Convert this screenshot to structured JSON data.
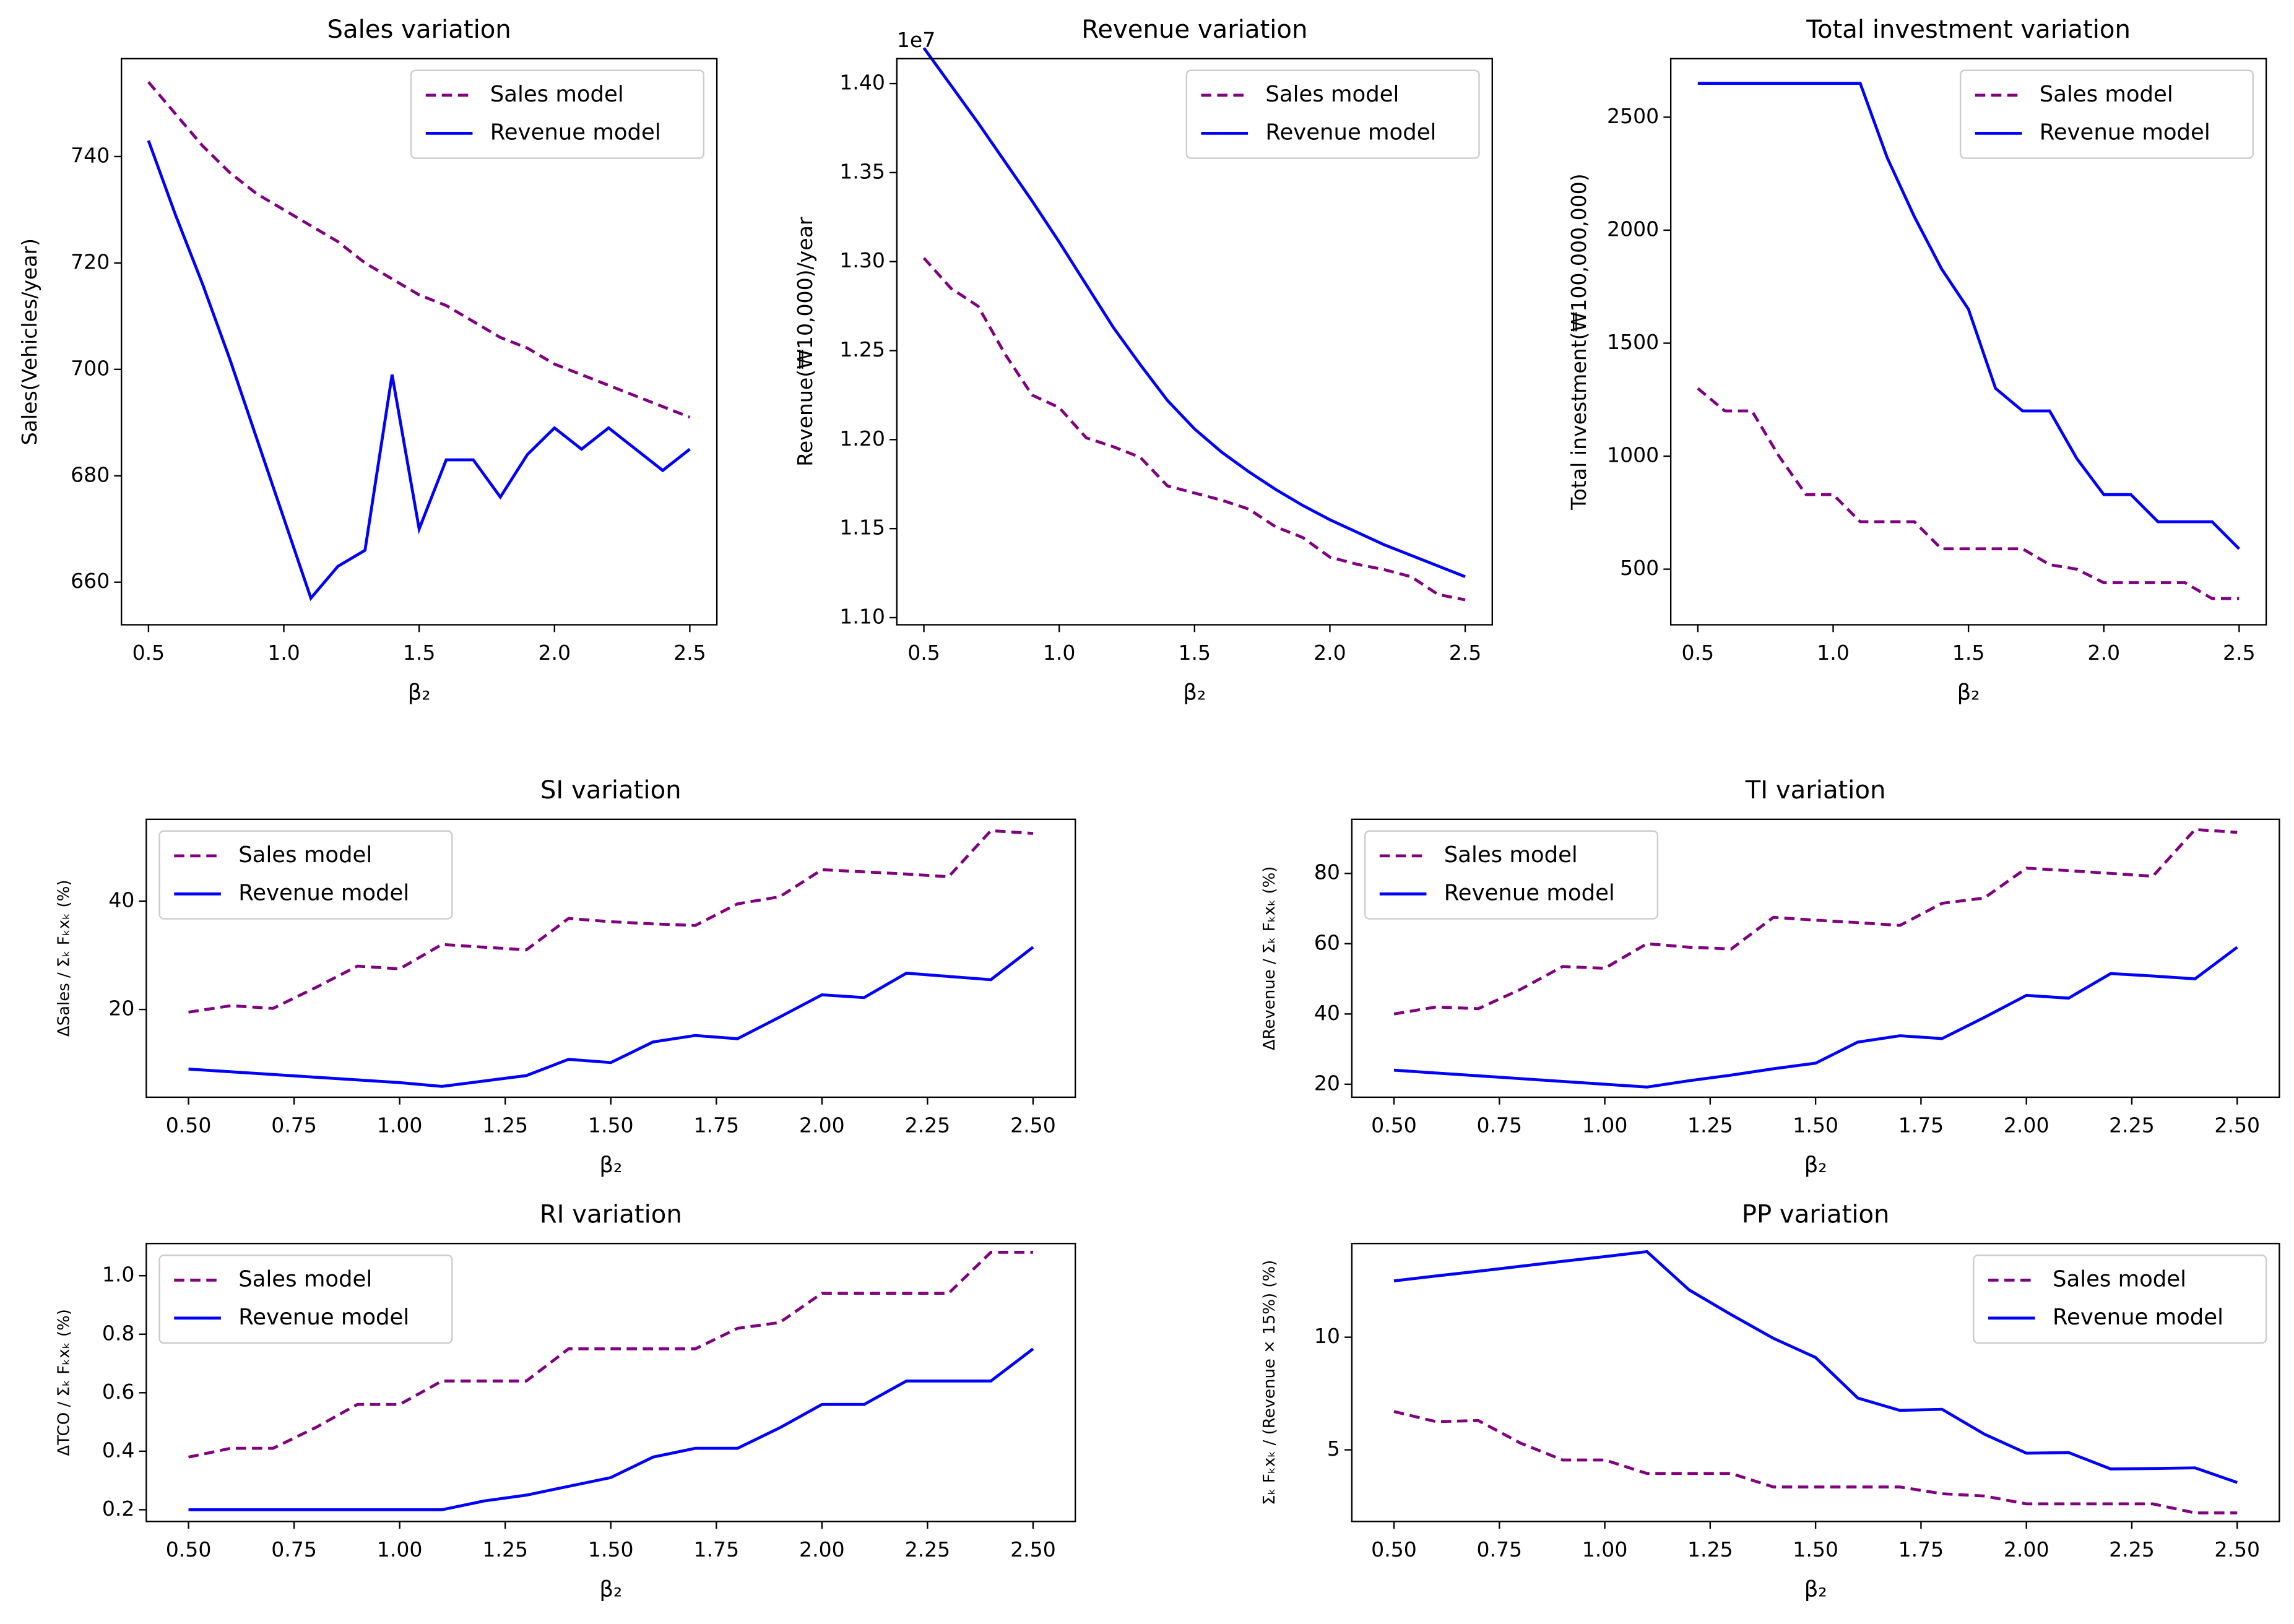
{
  "chart_data": [
    {
      "type": "line",
      "title": "Sales variation",
      "xlabel": "β₂",
      "ylabel": "Sales(Vehicles/year)",
      "x": [
        0.5,
        0.6,
        0.7,
        0.8,
        0.9,
        1.0,
        1.1,
        1.2,
        1.3,
        1.4,
        1.5,
        1.6,
        1.7,
        1.8,
        1.9,
        2.0,
        2.1,
        2.2,
        2.3,
        2.4,
        2.5
      ],
      "series": [
        {
          "name": "Sales model",
          "color": "#800080",
          "dash": true,
          "values": [
            754,
            748,
            742,
            737,
            733,
            730,
            727,
            724,
            720,
            717,
            714,
            712,
            709,
            706,
            704,
            701,
            699,
            697,
            695,
            693,
            691
          ]
        },
        {
          "name": "Revenue model",
          "color": "#0000ff",
          "dash": false,
          "values": [
            743,
            729,
            716,
            702,
            687,
            672,
            657,
            663,
            666,
            699,
            670,
            683,
            683,
            676,
            684,
            689,
            685,
            689,
            685,
            681,
            685
          ]
        }
      ],
      "xlim": [
        0.4,
        2.6
      ],
      "xticks": [
        0.5,
        {
          "value": 1.0,
          "label": "1.0"
        },
        1.5,
        {
          "value": 2.0,
          "label": "2.0"
        },
        2.5
      ],
      "ylim": [
        652,
        758.4
      ],
      "yticks": [
        660,
        680,
        700,
        720,
        740
      ],
      "legend": "upper right"
    },
    {
      "type": "line",
      "title": "Revenue variation",
      "xlabel": "β₂",
      "ylabel": "Revenue(₩10,000)/year",
      "offset_label": "1e7",
      "x": [
        0.5,
        0.6,
        0.7,
        0.8,
        0.9,
        1.0,
        1.1,
        1.2,
        1.3,
        1.4,
        1.5,
        1.6,
        1.7,
        1.8,
        1.9,
        2.0,
        2.1,
        2.2,
        2.3,
        2.4,
        2.5
      ],
      "series": [
        {
          "name": "Sales model",
          "color": "#800080",
          "dash": true,
          "values": [
            1.302,
            1.285,
            1.275,
            1.248,
            1.225,
            1.218,
            1.201,
            1.196,
            1.19,
            1.174,
            1.17,
            1.166,
            1.161,
            1.151,
            1.145,
            1.134,
            1.13,
            1.127,
            1.123,
            1.113,
            1.11
          ]
        },
        {
          "name": "Revenue model",
          "color": "#0000ff",
          "dash": false,
          "values": [
            1.42,
            1.399,
            1.378,
            1.356,
            1.334,
            1.311,
            1.287,
            1.263,
            1.242,
            1.222,
            1.206,
            1.193,
            1.182,
            1.172,
            1.163,
            1.155,
            1.148,
            1.141,
            1.135,
            1.129,
            1.123
          ]
        }
      ],
      "xlim": [
        0.4,
        2.6
      ],
      "xticks": [
        0.5,
        {
          "value": 1.0,
          "label": "1.0"
        },
        1.5,
        {
          "value": 2.0,
          "label": "2.0"
        },
        2.5
      ],
      "ylim": [
        1.096,
        1.414
      ],
      "yticks": [
        {
          "value": 1.1,
          "label": "1.10"
        },
        1.15,
        {
          "value": 1.2,
          "label": "1.20"
        },
        1.25,
        {
          "value": 1.3,
          "label": "1.30"
        },
        1.35,
        {
          "value": 1.4,
          "label": "1.40"
        }
      ],
      "legend": "upper right"
    },
    {
      "type": "line",
      "title": "Total investment variation",
      "xlabel": "β₂",
      "ylabel": "Total investment(₩100,000,000)",
      "x": [
        0.5,
        0.6,
        0.7,
        0.8,
        0.9,
        1.0,
        1.1,
        1.2,
        1.3,
        1.4,
        1.5,
        1.6,
        1.7,
        1.8,
        1.9,
        2.0,
        2.1,
        2.2,
        2.3,
        2.4,
        2.5
      ],
      "series": [
        {
          "name": "Sales model",
          "color": "#800080",
          "dash": true,
          "values": [
            1300,
            1200,
            1200,
            1000,
            830,
            830,
            710,
            710,
            710,
            590,
            590,
            590,
            590,
            520,
            500,
            440,
            440,
            440,
            440,
            370,
            370
          ]
        },
        {
          "name": "Revenue model",
          "color": "#0000ff",
          "dash": false,
          "values": [
            2650,
            2650,
            2650,
            2650,
            2650,
            2650,
            2650,
            2320,
            2060,
            1830,
            1650,
            1300,
            1200,
            1200,
            990,
            830,
            830,
            710,
            710,
            710,
            590
          ]
        }
      ],
      "xlim": [
        0.4,
        2.6
      ],
      "xticks": [
        0.5,
        {
          "value": 1.0,
          "label": "1.0"
        },
        1.5,
        {
          "value": 2.0,
          "label": "2.0"
        },
        2.5
      ],
      "ylim": [
        254,
        2759
      ],
      "yticks": [
        500,
        1000,
        1500,
        2000,
        2500
      ],
      "legend": "upper right"
    },
    {
      "type": "line",
      "title": "SI variation",
      "xlabel": "β₂",
      "ylabel": "ΔSales / Σₖ Fₖxₖ (%)",
      "x": [
        0.5,
        0.6,
        0.7,
        0.8,
        0.9,
        1.0,
        1.1,
        1.2,
        1.3,
        1.4,
        1.5,
        1.6,
        1.7,
        1.8,
        1.9,
        2.0,
        2.1,
        2.2,
        2.3,
        2.4,
        2.5
      ],
      "series": [
        {
          "name": "Sales model",
          "color": "#800080",
          "dash": true,
          "values": [
            19.5,
            20.7,
            20.2,
            24,
            28,
            27.5,
            32,
            31.5,
            31,
            36.8,
            36.2,
            35.8,
            35.5,
            39.5,
            40.8,
            45.8,
            45.4,
            45,
            44.5,
            53,
            52.5
          ]
        },
        {
          "name": "Revenue model",
          "color": "#0000ff",
          "dash": false,
          "values": [
            9,
            8.5,
            8,
            7.5,
            7,
            6.5,
            5.8,
            6.8,
            7.8,
            10.8,
            10.2,
            14,
            15.2,
            14.6,
            18.6,
            22.7,
            22.2,
            26.7,
            26.1,
            25.5,
            31.5
          ]
        }
      ],
      "xlim": [
        0.4,
        2.6
      ],
      "xticks": [
        {
          "value": 0.5,
          "label": "0.50"
        },
        0.75,
        {
          "value": 1.0,
          "label": "1.00"
        },
        1.25,
        {
          "value": 1.5,
          "label": "1.50"
        },
        1.75,
        {
          "value": 2.0,
          "label": "2.00"
        },
        2.25,
        {
          "value": 2.5,
          "label": "2.50"
        }
      ],
      "ylim": [
        3.8,
        55.1
      ],
      "yticks": [
        20,
        40
      ],
      "legend": "upper left"
    },
    {
      "type": "line",
      "title": "TI variation",
      "xlabel": "β₂",
      "ylabel": "ΔRevenue / Σₖ Fₖxₖ (%)",
      "x": [
        0.5,
        0.6,
        0.7,
        0.8,
        0.9,
        1.0,
        1.1,
        1.2,
        1.3,
        1.4,
        1.5,
        1.6,
        1.7,
        1.8,
        1.9,
        2.0,
        2.1,
        2.2,
        2.3,
        2.4,
        2.5
      ],
      "series": [
        {
          "name": "Sales model",
          "color": "#800080",
          "dash": true,
          "values": [
            40,
            42,
            41.5,
            47,
            53.5,
            53,
            60,
            59,
            58.5,
            67.5,
            66.7,
            66,
            65.2,
            71.5,
            73,
            81.5,
            80.8,
            80,
            79.2,
            92.5,
            91.7
          ]
        },
        {
          "name": "Revenue model",
          "color": "#0000ff",
          "dash": false,
          "values": [
            24,
            23.2,
            22.4,
            21.6,
            20.8,
            20,
            19.2,
            21,
            22.6,
            24.4,
            26,
            32,
            33.8,
            33,
            39,
            45.3,
            44.5,
            51.5,
            50.8,
            50,
            59
          ]
        }
      ],
      "xlim": [
        0.4,
        2.6
      ],
      "xticks": [
        {
          "value": 0.5,
          "label": "0.50"
        },
        0.75,
        {
          "value": 1.0,
          "label": "1.00"
        },
        1.25,
        {
          "value": 1.5,
          "label": "1.50"
        },
        1.75,
        {
          "value": 2.0,
          "label": "2.00"
        },
        2.25,
        {
          "value": 2.5,
          "label": "2.50"
        }
      ],
      "ylim": [
        16.3,
        95.4
      ],
      "yticks": [
        20,
        40,
        60,
        80
      ],
      "legend": "upper left"
    },
    {
      "type": "line",
      "title": "RI variation",
      "xlabel": "β₂",
      "ylabel": "ΔTCO / Σₖ Fₖxₖ (%)",
      "x": [
        0.5,
        0.6,
        0.7,
        0.8,
        0.9,
        1.0,
        1.1,
        1.2,
        1.3,
        1.4,
        1.5,
        1.6,
        1.7,
        1.8,
        1.9,
        2.0,
        2.1,
        2.2,
        2.3,
        2.4,
        2.5
      ],
      "series": [
        {
          "name": "Sales model",
          "color": "#800080",
          "dash": true,
          "values": [
            0.38,
            0.41,
            0.41,
            0.48,
            0.56,
            0.56,
            0.64,
            0.64,
            0.64,
            0.75,
            0.75,
            0.75,
            0.75,
            0.82,
            0.84,
            0.94,
            0.94,
            0.94,
            0.94,
            1.08,
            1.08
          ]
        },
        {
          "name": "Revenue model",
          "color": "#0000ff",
          "dash": false,
          "values": [
            0.2,
            0.2,
            0.2,
            0.2,
            0.2,
            0.2,
            0.2,
            0.23,
            0.25,
            0.28,
            0.31,
            0.38,
            0.41,
            0.41,
            0.48,
            0.56,
            0.56,
            0.64,
            0.64,
            0.64,
            0.75
          ]
        }
      ],
      "xlim": [
        0.4,
        2.6
      ],
      "xticks": [
        {
          "value": 0.5,
          "label": "0.50"
        },
        0.75,
        {
          "value": 1.0,
          "label": "1.00"
        },
        1.25,
        {
          "value": 1.5,
          "label": "1.50"
        },
        1.75,
        {
          "value": 2.0,
          "label": "2.00"
        },
        2.25,
        {
          "value": 2.5,
          "label": "2.50"
        }
      ],
      "ylim": [
        0.16,
        1.11
      ],
      "yticks": [
        0.2,
        0.4,
        0.6,
        0.8,
        {
          "value": 1.0,
          "label": "1.0"
        }
      ],
      "legend": "upper left"
    },
    {
      "type": "line",
      "title": "PP variation",
      "xlabel": "β₂",
      "ylabel": "Σₖ Fₖxₖ / (Revenue × 15%) (%)",
      "x": [
        0.5,
        0.6,
        0.7,
        0.8,
        0.9,
        1.0,
        1.1,
        1.2,
        1.3,
        1.4,
        1.5,
        1.6,
        1.7,
        1.8,
        1.9,
        2.0,
        2.1,
        2.2,
        2.3,
        2.4,
        2.5
      ],
      "series": [
        {
          "name": "Sales model",
          "color": "#800080",
          "dash": true,
          "values": [
            6.7,
            6.25,
            6.3,
            5.3,
            4.55,
            4.55,
            3.95,
            3.95,
            3.95,
            3.35,
            3.35,
            3.35,
            3.35,
            3.05,
            2.95,
            2.6,
            2.6,
            2.6,
            2.6,
            2.2,
            2.2
          ]
        },
        {
          "name": "Revenue model",
          "color": "#0000ff",
          "dash": false,
          "values": [
            12.5,
            12.72,
            12.93,
            13.15,
            13.37,
            13.58,
            13.8,
            12.1,
            11,
            9.95,
            9.1,
            7.3,
            6.75,
            6.8,
            5.7,
            4.85,
            4.88,
            4.15,
            4.17,
            4.2,
            3.55
          ]
        }
      ],
      "xlim": [
        0.4,
        2.6
      ],
      "xticks": [
        {
          "value": 0.5,
          "label": "0.50"
        },
        0.75,
        {
          "value": 1.0,
          "label": "1.00"
        },
        1.25,
        {
          "value": 1.5,
          "label": "1.50"
        },
        1.75,
        {
          "value": 2.0,
          "label": "2.00"
        },
        2.25,
        {
          "value": 2.5,
          "label": "2.50"
        }
      ],
      "ylim": [
        1.82,
        14.16
      ],
      "yticks": [
        5,
        10
      ],
      "legend": "upper right"
    }
  ]
}
